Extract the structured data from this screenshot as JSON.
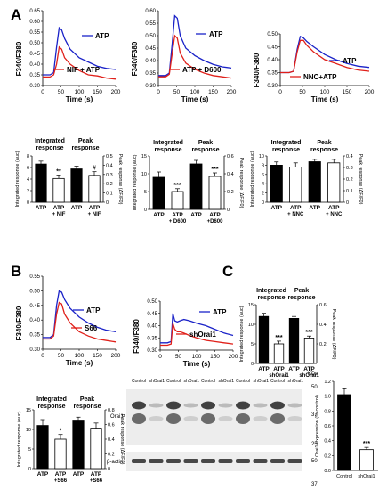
{
  "figure": {
    "panel_labels": [
      "A",
      "B",
      "C"
    ]
  },
  "blot": {
    "kda_label": "KDa",
    "lane_labels": [
      "Control",
      "shOrai1",
      "Control",
      "shOrai1",
      "Control",
      "shOrai1",
      "Control",
      "shOrai1",
      "Control",
      "shOrai1"
    ],
    "row_labels": [
      "Orai1",
      "β-actin"
    ],
    "markers": [
      "50",
      "37",
      "25",
      "50",
      "37"
    ]
  },
  "chart_data": [
    {
      "id": "A1",
      "type": "line",
      "xlabel": "Time (s)",
      "ylabel": "F340/F380",
      "xlim": [
        0,
        200
      ],
      "ylim": [
        0.3,
        0.65
      ],
      "xticks": [
        0,
        50,
        100,
        150,
        200
      ],
      "yticks": [
        0.3,
        0.35,
        0.4,
        0.45,
        0.5,
        0.55,
        0.6,
        0.65
      ],
      "yticklabels": [
        "0.30",
        "0.35",
        "0.40",
        "0.45",
        "0.50",
        "0.55",
        "0.60",
        "0.65"
      ],
      "legend": [
        "ATP",
        "NIF + ATP"
      ],
      "series": [
        {
          "name": "ATP",
          "color": "#1a22c8",
          "x": [
            0,
            20,
            30,
            38,
            45,
            52,
            60,
            75,
            100,
            125,
            150,
            175,
            200
          ],
          "y": [
            0.35,
            0.35,
            0.36,
            0.48,
            0.57,
            0.56,
            0.52,
            0.47,
            0.43,
            0.41,
            0.39,
            0.38,
            0.375
          ]
        },
        {
          "name": "NIF + ATP",
          "color": "#e0201a",
          "x": [
            0,
            20,
            30,
            38,
            45,
            52,
            60,
            75,
            100,
            125,
            150,
            175,
            200
          ],
          "y": [
            0.34,
            0.34,
            0.35,
            0.4,
            0.48,
            0.47,
            0.43,
            0.4,
            0.37,
            0.35,
            0.345,
            0.335,
            0.33
          ]
        }
      ]
    },
    {
      "id": "A2",
      "type": "line",
      "xlabel": "Time (s)",
      "ylabel": "F340/F380",
      "xlim": [
        0,
        200
      ],
      "ylim": [
        0.3,
        0.6
      ],
      "xticks": [
        0,
        50,
        100,
        150,
        200
      ],
      "yticks": [
        0.3,
        0.35,
        0.4,
        0.45,
        0.5,
        0.55,
        0.6
      ],
      "yticklabels": [
        "0.30",
        "0.35",
        "0.40",
        "0.45",
        "0.50",
        "0.55",
        "0.60"
      ],
      "legend": [
        "ATP",
        "ATP + D600"
      ],
      "series": [
        {
          "name": "ATP",
          "color": "#1a22c8",
          "x": [
            0,
            20,
            30,
            38,
            45,
            52,
            60,
            75,
            100,
            125,
            150,
            175,
            200
          ],
          "y": [
            0.34,
            0.34,
            0.35,
            0.47,
            0.58,
            0.57,
            0.5,
            0.45,
            0.42,
            0.4,
            0.385,
            0.375,
            0.37
          ]
        },
        {
          "name": "ATP + D600",
          "color": "#e0201a",
          "x": [
            0,
            20,
            30,
            38,
            45,
            52,
            60,
            75,
            100,
            125,
            150,
            175,
            200
          ],
          "y": [
            0.335,
            0.335,
            0.345,
            0.43,
            0.5,
            0.49,
            0.43,
            0.39,
            0.365,
            0.35,
            0.34,
            0.335,
            0.33
          ]
        }
      ]
    },
    {
      "id": "A3",
      "type": "line",
      "xlabel": "Time (s)",
      "ylabel": "F340/F380",
      "xlim": [
        0,
        200
      ],
      "ylim": [
        0.3,
        0.5
      ],
      "xticks": [
        0,
        50,
        100,
        150,
        200
      ],
      "yticks": [
        0.3,
        0.35,
        0.4,
        0.45,
        0.5
      ],
      "yticklabels": [
        "0.30",
        "0.35",
        "0.40",
        "0.45",
        "0.50"
      ],
      "legend": [
        "ATP",
        "NNC+ATP"
      ],
      "series": [
        {
          "name": "ATP",
          "color": "#1a22c8",
          "x": [
            0,
            20,
            30,
            38,
            45,
            52,
            60,
            75,
            100,
            125,
            150,
            175,
            200
          ],
          "y": [
            0.35,
            0.35,
            0.355,
            0.44,
            0.49,
            0.485,
            0.47,
            0.45,
            0.42,
            0.4,
            0.385,
            0.375,
            0.37
          ]
        },
        {
          "name": "NNC+ATP",
          "color": "#e0201a",
          "x": [
            0,
            20,
            30,
            38,
            45,
            52,
            60,
            75,
            100,
            125,
            150,
            175,
            200
          ],
          "y": [
            0.35,
            0.35,
            0.355,
            0.43,
            0.475,
            0.475,
            0.455,
            0.43,
            0.4,
            0.385,
            0.37,
            0.36,
            0.355
          ]
        }
      ]
    },
    {
      "id": "A1bar",
      "type": "bar",
      "group_titles": [
        "Integrated response",
        "Peak response"
      ],
      "ylabel_left": "Integrated response (auc)",
      "ylabel_right": "Peak response (ΔF/F0)",
      "ylim_left": [
        0,
        8
      ],
      "yticks_left": [
        0,
        2,
        4,
        6,
        8
      ],
      "ylim_right": [
        0,
        0.5
      ],
      "yticks_right": [
        0,
        0.1,
        0.2,
        0.3,
        0.4,
        0.5
      ],
      "categories": [
        "ATP",
        "ATP + NIF",
        "ATP",
        "ATP + NIF"
      ],
      "values": [
        6.6,
        4.1,
        0.36,
        0.29
      ],
      "errors": [
        0.5,
        0.6,
        0.03,
        0.04
      ],
      "axis": [
        "left",
        "left",
        "right",
        "right"
      ],
      "fills": [
        "black",
        "white",
        "black",
        "white"
      ],
      "annotations": [
        "",
        "**",
        "",
        "#"
      ]
    },
    {
      "id": "A2bar",
      "type": "bar",
      "group_titles": [
        "Integrated response",
        "Peak response"
      ],
      "ylabel_left": "Integrated response (auc)",
      "ylabel_right": "Peak response (ΔF/F0)",
      "ylim_left": [
        0,
        15
      ],
      "yticks_left": [
        0,
        5,
        10,
        15
      ],
      "ylim_right": [
        0,
        0.6
      ],
      "yticks_right": [
        0,
        0.2,
        0.4,
        0.6
      ],
      "categories": [
        "ATP",
        "ATP + D600",
        "ATP",
        "ATP +D600"
      ],
      "values": [
        9.0,
        5.0,
        0.51,
        0.37
      ],
      "errors": [
        1.5,
        0.8,
        0.04,
        0.04
      ],
      "axis": [
        "left",
        "left",
        "right",
        "right"
      ],
      "fills": [
        "black",
        "white",
        "black",
        "white"
      ],
      "annotations": [
        "",
        "***",
        "",
        "***"
      ]
    },
    {
      "id": "A3bar",
      "type": "bar",
      "group_titles": [
        "Integrated response",
        "Peak response"
      ],
      "ylabel_left": "Integrated response (auc)",
      "ylabel_right": "Peak response (ΔF/F0)",
      "ylim_left": [
        0,
        10
      ],
      "yticks_left": [
        0,
        2,
        4,
        6,
        8,
        10
      ],
      "ylim_right": [
        0,
        0.4
      ],
      "yticks_right": [
        0,
        0.1,
        0.2,
        0.3,
        0.4
      ],
      "categories": [
        "ATP",
        "ATP + NNC",
        "ATP",
        "ATP + NNC"
      ],
      "values": [
        8.0,
        7.6,
        0.35,
        0.34
      ],
      "errors": [
        0.7,
        0.9,
        0.02,
        0.03
      ],
      "axis": [
        "left",
        "left",
        "right",
        "right"
      ],
      "fills": [
        "black",
        "white",
        "black",
        "white"
      ],
      "annotations": [
        "",
        "",
        "",
        ""
      ]
    },
    {
      "id": "B1",
      "type": "line",
      "xlabel": "Time (s)",
      "ylabel": "F340/F380",
      "xlim": [
        0,
        200
      ],
      "ylim": [
        0.3,
        0.55
      ],
      "xticks": [
        0,
        50,
        100,
        150,
        200
      ],
      "yticks": [
        0.3,
        0.35,
        0.4,
        0.45,
        0.5,
        0.55
      ],
      "yticklabels": [
        "0.30",
        "0.35",
        "0.40",
        "0.45",
        "0.50",
        "0.55"
      ],
      "legend": [
        "ATP",
        "S66"
      ],
      "series": [
        {
          "name": "ATP",
          "color": "#1a22c8",
          "x": [
            0,
            20,
            30,
            38,
            45,
            52,
            60,
            75,
            100,
            125,
            150,
            175,
            200
          ],
          "y": [
            0.34,
            0.34,
            0.35,
            0.45,
            0.5,
            0.495,
            0.47,
            0.44,
            0.41,
            0.39,
            0.375,
            0.365,
            0.36
          ]
        },
        {
          "name": "S66",
          "color": "#e0201a",
          "x": [
            0,
            20,
            30,
            38,
            45,
            52,
            60,
            75,
            100,
            125,
            150,
            175,
            200
          ],
          "y": [
            0.335,
            0.335,
            0.345,
            0.42,
            0.46,
            0.455,
            0.42,
            0.39,
            0.36,
            0.345,
            0.335,
            0.33,
            0.325
          ]
        }
      ]
    },
    {
      "id": "B2",
      "type": "line",
      "xlabel": "Time (s)",
      "ylabel": "F340/F380",
      "xlim": [
        0,
        200
      ],
      "ylim": [
        0.3,
        0.5
      ],
      "xticks": [
        0,
        50,
        100,
        150,
        200
      ],
      "yticks": [
        0.3,
        0.35,
        0.4,
        0.45,
        0.5
      ],
      "yticklabels": [
        "0.30",
        "0.35",
        "0.40",
        "0.45",
        "0.50"
      ],
      "legend": [
        "ATP",
        "shOrai1"
      ],
      "series": [
        {
          "name": "ATP",
          "color": "#1a22c8",
          "x": [
            0,
            20,
            30,
            35,
            40,
            47,
            55,
            65,
            80,
            100,
            125,
            150,
            175,
            200
          ],
          "y": [
            0.33,
            0.33,
            0.335,
            0.45,
            0.42,
            0.415,
            0.42,
            0.425,
            0.42,
            0.41,
            0.4,
            0.385,
            0.37,
            0.36
          ]
        },
        {
          "name": "shOrai1",
          "color": "#e0201a",
          "x": [
            0,
            20,
            30,
            35,
            40,
            47,
            55,
            65,
            80,
            100,
            125,
            150,
            175,
            200
          ],
          "y": [
            0.32,
            0.32,
            0.325,
            0.41,
            0.385,
            0.375,
            0.375,
            0.37,
            0.36,
            0.35,
            0.34,
            0.335,
            0.33,
            0.325
          ]
        }
      ]
    },
    {
      "id": "Bbar",
      "type": "bar",
      "group_titles": [
        "Integrated response",
        "Peak response"
      ],
      "ylabel_left": "Integrated response (auc)",
      "ylabel_right": "Peak response (ΔF/F0)",
      "ylim_left": [
        0,
        15
      ],
      "yticks_left": [
        0,
        5,
        10,
        15
      ],
      "ylim_right": [
        0,
        0.8
      ],
      "yticks_right": [
        0,
        0.2,
        0.4,
        0.6,
        0.8
      ],
      "categories": [
        "ATP",
        "ATP +S66",
        "ATP",
        "ATP +S66"
      ],
      "values": [
        11.0,
        7.5,
        0.66,
        0.55
      ],
      "errors": [
        1.5,
        1.2,
        0.04,
        0.07
      ],
      "axis": [
        "left",
        "left",
        "right",
        "right"
      ],
      "fills": [
        "black",
        "white",
        "black",
        "white"
      ],
      "annotations": [
        "",
        "*",
        "",
        ""
      ]
    },
    {
      "id": "Cbar",
      "type": "bar",
      "group_titles": [
        "Integrated response",
        "Peak response"
      ],
      "ylabel_left": "Integrated response (auc)",
      "ylabel_right": "Peak response (ΔF/F0)",
      "ylim_left": [
        0,
        15
      ],
      "yticks_left": [
        0,
        5,
        10,
        15
      ],
      "ylim_right": [
        0,
        0.6
      ],
      "yticks_right": [
        0.2,
        0.4,
        0.6
      ],
      "categories": [
        "ATP",
        "ATP shOrai1",
        "ATP",
        "ATP shOrai1"
      ],
      "values": [
        12.0,
        5.0,
        0.46,
        0.26
      ],
      "errors": [
        0.8,
        0.7,
        0.02,
        0.02
      ],
      "axis": [
        "left",
        "left",
        "right",
        "right"
      ],
      "fills": [
        "black",
        "white",
        "black",
        "white"
      ],
      "annotations": [
        "",
        "***",
        "",
        "***"
      ]
    },
    {
      "id": "Corai",
      "type": "bar",
      "ylabel": "Orai1 expression (% control)",
      "ylim": [
        0,
        1.2
      ],
      "yticks": [
        0,
        0.2,
        0.4,
        0.6,
        0.8,
        1.0,
        1.2
      ],
      "yticklabels": [
        "0.0",
        "0.2",
        "0.4",
        "0.6",
        "0.8",
        "1.0",
        "1.2"
      ],
      "categories": [
        "Control",
        "shOrai1"
      ],
      "values": [
        1.02,
        0.28
      ],
      "errors": [
        0.08,
        0.03
      ],
      "fills": [
        "black",
        "white"
      ],
      "annotations": [
        "",
        "***"
      ]
    }
  ]
}
